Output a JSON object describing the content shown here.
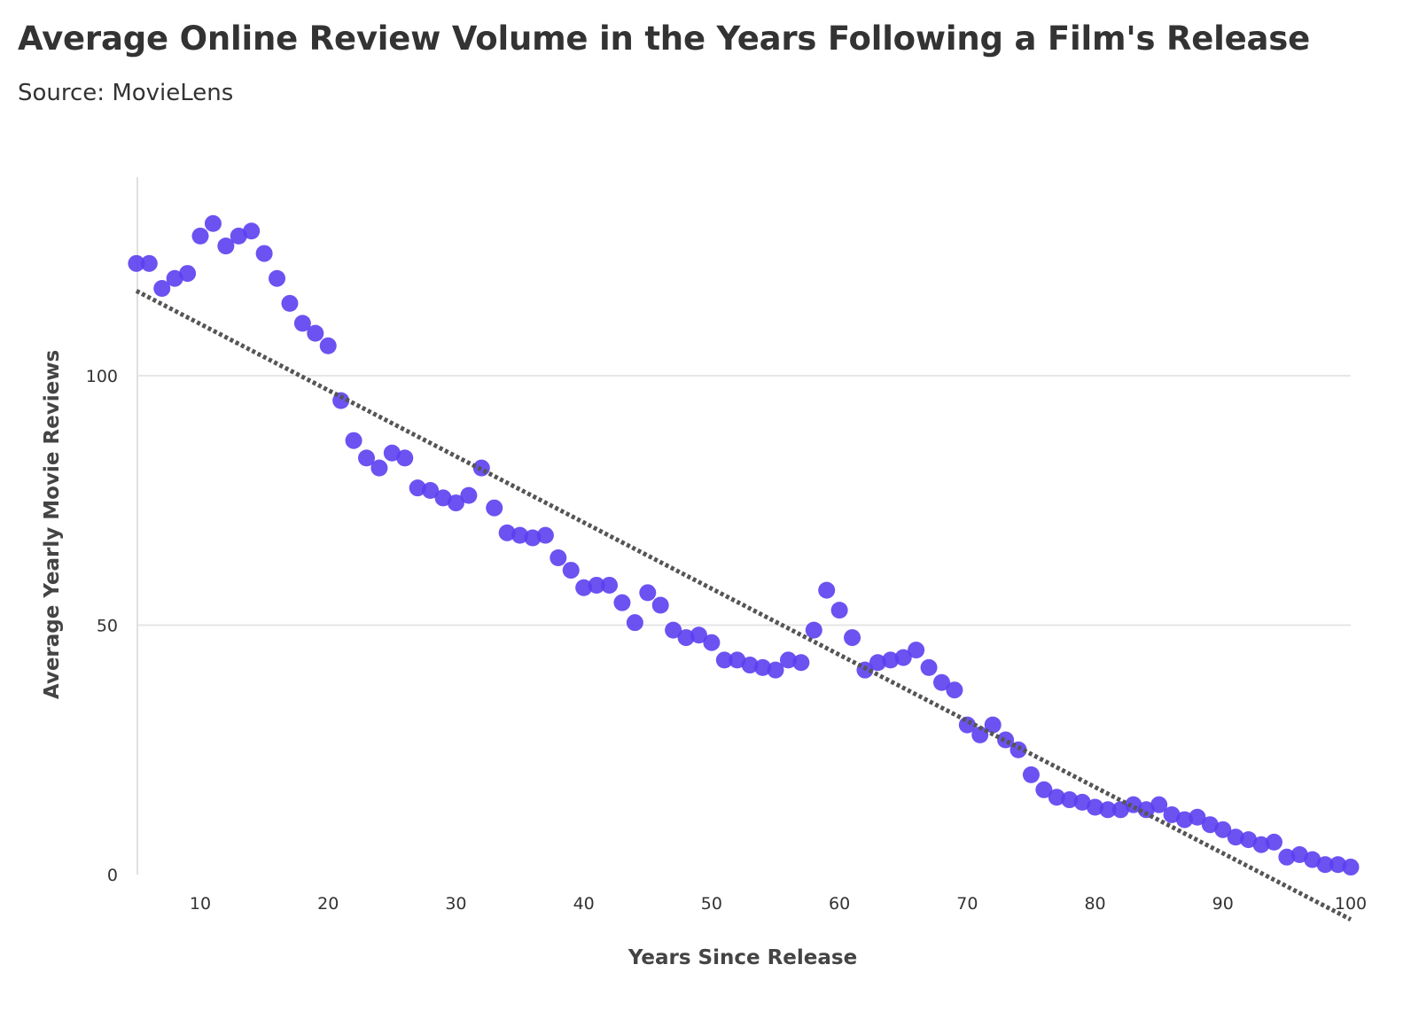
{
  "chart_data": {
    "type": "scatter",
    "title": "Average Online Review Volume in the Years Following a Film's Release",
    "subtitle": "Source: MovieLens",
    "xlabel": "Years Since Release",
    "ylabel": "Average Yearly Movie Reviews",
    "xlim": [
      5,
      100
    ],
    "ylim": [
      0,
      140
    ],
    "x_ticks": [
      10,
      20,
      30,
      40,
      50,
      60,
      70,
      80,
      90,
      100
    ],
    "y_ticks": [
      0,
      50,
      100
    ],
    "grid": "horizontal",
    "legend": "none",
    "point_color": "#5b3ff0",
    "trendline": {
      "style": "dotted",
      "color": "#555555",
      "start": [
        5,
        117
      ],
      "end": [
        100,
        -9
      ]
    },
    "points": {
      "x": [
        5,
        6,
        7,
        8,
        9,
        10,
        11,
        12,
        13,
        14,
        15,
        16,
        17,
        18,
        19,
        20,
        21,
        22,
        23,
        24,
        25,
        26,
        27,
        28,
        29,
        30,
        31,
        32,
        33,
        34,
        35,
        36,
        37,
        38,
        39,
        40,
        41,
        42,
        43,
        44,
        45,
        46,
        47,
        48,
        49,
        50,
        51,
        52,
        53,
        54,
        55,
        56,
        57,
        58,
        59,
        60,
        61,
        62,
        63,
        64,
        65,
        66,
        67,
        68,
        69,
        70,
        71,
        72,
        73,
        74,
        75,
        76,
        77,
        78,
        79,
        80,
        81,
        82,
        83,
        84,
        85,
        86,
        87,
        88,
        89,
        90,
        91,
        92,
        93,
        94,
        95,
        96,
        97,
        98,
        99,
        100
      ],
      "y": [
        122.5,
        122.5,
        117.5,
        119.5,
        120.5,
        128,
        130.5,
        126,
        128,
        129,
        124.5,
        119.5,
        114.5,
        110.5,
        108.5,
        106,
        95,
        87,
        83.5,
        81.5,
        84.5,
        83.5,
        77.5,
        77,
        75.5,
        74.5,
        76,
        81.5,
        73.5,
        68.5,
        68,
        67.5,
        68,
        63.5,
        61,
        57.5,
        58,
        58,
        54.5,
        50.5,
        56.5,
        54,
        49,
        47.5,
        48,
        46.5,
        43,
        43,
        42,
        41.5,
        41,
        43,
        42.5,
        49,
        57,
        53,
        47.5,
        41,
        42.5,
        43,
        43.5,
        45,
        41.5,
        38.5,
        37,
        30,
        28,
        30,
        27,
        25,
        20,
        17,
        15.5,
        15,
        14.5,
        13.5,
        13,
        13,
        14,
        13,
        14,
        12,
        11,
        11.5,
        10,
        9,
        7.5,
        7,
        6,
        6.5,
        3.5,
        4,
        3,
        2,
        2,
        1.5
      ]
    }
  }
}
